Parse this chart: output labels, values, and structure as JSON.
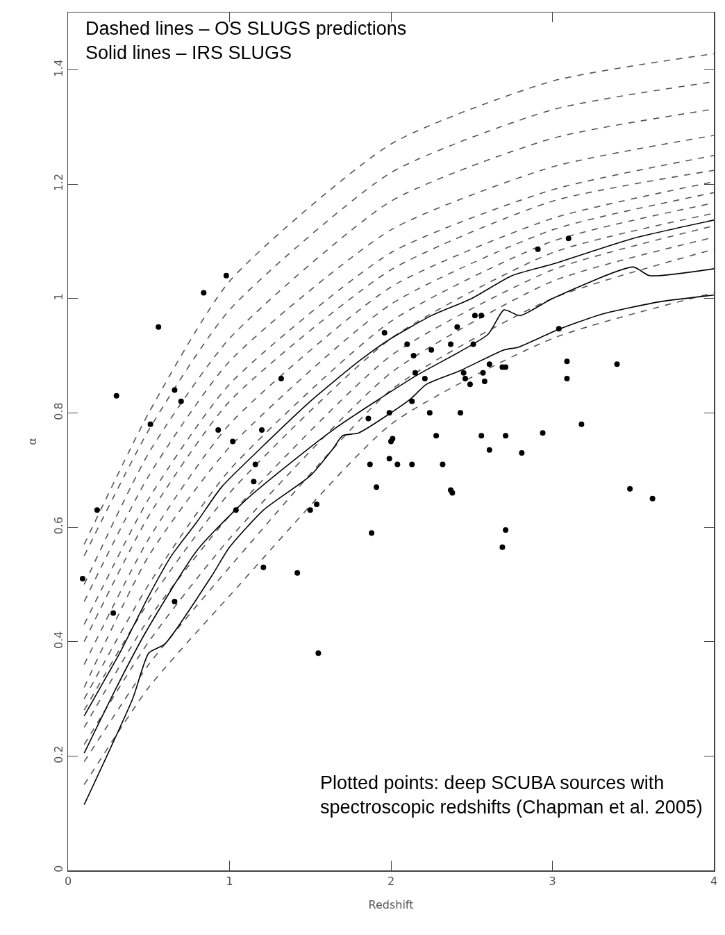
{
  "chart_data": {
    "type": "line",
    "xlabel": "Redshift",
    "ylabel": "α",
    "xlim": [
      0,
      4
    ],
    "ylim": [
      0,
      1.5
    ],
    "xticks": [
      0,
      1,
      2,
      3,
      4
    ],
    "yticks": [
      0,
      0.2,
      0.4,
      0.6,
      0.8,
      1,
      1.2,
      1.4
    ],
    "grid": false,
    "annotations": [
      "Dashed lines – OS SLUGS predictions\nSolid lines – IRS SLUGS",
      "Plotted points: deep SCUBA sources with\nspectroscopic redshifts (Chapman et al. 2005)"
    ],
    "series": [
      {
        "type": "line",
        "line_style": "dashed",
        "marker": "none",
        "color": "#555555",
        "x": [
          0.1,
          0.5,
          1,
          2,
          3,
          4
        ],
        "values": [
          0.57,
          0.8,
          1.03,
          1.27,
          1.38,
          1.428
        ]
      },
      {
        "type": "line",
        "line_style": "dashed",
        "marker": "none",
        "color": "#555555",
        "x": [
          0.1,
          0.5,
          1,
          2,
          3,
          4
        ],
        "values": [
          0.55,
          0.77,
          0.98,
          1.22,
          1.33,
          1.379
        ]
      },
      {
        "type": "line",
        "line_style": "dashed",
        "marker": "none",
        "color": "#555555",
        "x": [
          0.1,
          0.5,
          1,
          2,
          3,
          4
        ],
        "values": [
          0.5,
          0.73,
          0.93,
          1.17,
          1.28,
          1.331
        ]
      },
      {
        "type": "line",
        "line_style": "dashed",
        "marker": "none",
        "color": "#555555",
        "x": [
          0.1,
          0.5,
          1,
          2,
          3,
          4
        ],
        "values": [
          0.47,
          0.69,
          0.89,
          1.12,
          1.23,
          1.285
        ]
      },
      {
        "type": "line",
        "line_style": "dashed",
        "marker": "none",
        "color": "#555555",
        "x": [
          0.1,
          0.5,
          1,
          2,
          3,
          4
        ],
        "values": [
          0.43,
          0.65,
          0.85,
          1.08,
          1.19,
          1.25
        ]
      },
      {
        "type": "line",
        "line_style": "dashed",
        "marker": "none",
        "color": "#555555",
        "x": [
          0.1,
          0.5,
          1,
          2,
          3,
          4
        ],
        "values": [
          0.4,
          0.62,
          0.82,
          1.05,
          1.17,
          1.224
        ]
      },
      {
        "type": "line",
        "line_style": "dashed",
        "marker": "none",
        "color": "#555555",
        "x": [
          0.1,
          0.5,
          1,
          2,
          3,
          4
        ],
        "values": [
          0.36,
          0.58,
          0.78,
          1.02,
          1.14,
          1.204
        ]
      },
      {
        "type": "line",
        "line_style": "dashed",
        "marker": "none",
        "color": "#555555",
        "x": [
          0.1,
          0.5,
          1,
          2,
          3,
          4
        ],
        "values": [
          0.32,
          0.55,
          0.74,
          0.99,
          1.12,
          1.185
        ]
      },
      {
        "type": "line",
        "line_style": "dashed",
        "marker": "none",
        "color": "#555555",
        "x": [
          0.1,
          0.5,
          1,
          2,
          3,
          4
        ],
        "values": [
          0.3,
          0.5,
          0.7,
          0.96,
          1.1,
          1.167
        ]
      },
      {
        "type": "line",
        "line_style": "dashed",
        "marker": "none",
        "color": "#555555",
        "x": [
          0.1,
          0.5,
          1,
          2,
          3,
          4
        ],
        "values": [
          0.28,
          0.47,
          0.66,
          0.93,
          1.08,
          1.149
        ]
      },
      {
        "type": "line",
        "line_style": "dashed",
        "marker": "none",
        "color": "#555555",
        "x": [
          0.1,
          0.5,
          1,
          2,
          3,
          4
        ],
        "values": [
          0.25,
          0.44,
          0.62,
          0.9,
          1.05,
          1.127
        ]
      },
      {
        "type": "line",
        "line_style": "dashed",
        "marker": "none",
        "color": "#555555",
        "x": [
          0.1,
          0.5,
          1,
          2,
          3,
          4
        ],
        "values": [
          0.22,
          0.4,
          0.58,
          0.87,
          1.03,
          1.107
        ]
      },
      {
        "type": "line",
        "line_style": "dashed",
        "marker": "none",
        "color": "#555555",
        "x": [
          0.1,
          0.5,
          1,
          2,
          3,
          4
        ],
        "values": [
          0.19,
          0.36,
          0.53,
          0.84,
          1,
          1.086
        ]
      },
      {
        "type": "line",
        "line_style": "dashed",
        "marker": "none",
        "color": "#555555",
        "x": [
          0.1,
          0.5,
          1,
          2,
          3,
          4
        ],
        "values": [
          0.15,
          0.32,
          0.48,
          0.78,
          0.93,
          1.01
        ]
      },
      {
        "line_style": "solid",
        "marker": "none",
        "color": "#000000",
        "x": [
          0.1,
          0.2,
          0.32,
          0.5,
          0.64,
          0.8,
          0.95,
          1.2,
          1.5,
          1.8,
          2,
          2.25,
          2.5,
          2.75,
          3,
          3.5,
          4
        ],
        "values": [
          0.27,
          0.32,
          0.38,
          0.48,
          0.55,
          0.61,
          0.67,
          0.74,
          0.82,
          0.89,
          0.93,
          0.97,
          1,
          1.04,
          1.06,
          1.105,
          1.137
        ]
      },
      {
        "line_style": "solid",
        "marker": "none",
        "color": "#000000",
        "x": [
          0.1,
          0.3,
          0.48,
          0.8,
          1.11,
          1.64,
          2.15,
          2.6,
          2.7,
          2.8,
          3,
          3.5,
          3.6,
          4
        ],
        "values": [
          0.205,
          0.32,
          0.416,
          0.56,
          0.65,
          0.77,
          0.864,
          0.937,
          0.98,
          0.97,
          1,
          1.055,
          1.04,
          1.052
        ]
      },
      {
        "line_style": "solid",
        "marker": "none",
        "color": "#000000",
        "x": [
          0.1,
          0.4,
          0.5,
          0.6,
          0.89,
          1,
          1.21,
          1.5,
          1.64,
          1.7,
          1.8,
          2.12,
          2.22,
          2.43,
          2.7,
          2.79,
          3.03,
          3.31,
          3.66,
          4
        ],
        "values": [
          0.115,
          0.3,
          0.38,
          0.396,
          0.515,
          0.565,
          0.63,
          0.69,
          0.737,
          0.76,
          0.765,
          0.824,
          0.85,
          0.874,
          0.91,
          0.915,
          0.945,
          0.973,
          0.994,
          1.006
        ]
      },
      {
        "type": "scatter",
        "marker": "circle",
        "color": "#000000",
        "x": [
          0.09,
          0.18,
          0.3,
          0.28,
          0.51,
          0.56,
          0.66,
          0.66,
          0.7,
          0.84,
          0.98,
          0.93,
          1.02,
          1.04,
          1.15,
          1.16,
          1.2,
          1.21,
          1.32,
          1.42,
          1.5,
          1.54,
          1.55,
          1.86,
          1.87,
          1.88,
          1.91,
          1.96,
          1.99,
          1.99,
          2,
          2.01,
          2.04,
          2.1,
          2.13,
          2.13,
          2.14,
          2.15,
          2.21,
          2.24,
          2.25,
          2.28,
          2.32,
          2.37,
          2.37,
          2.38,
          2.41,
          2.43,
          2.45,
          2.46,
          2.49,
          2.51,
          2.52,
          2.56,
          2.56,
          2.57,
          2.58,
          2.61,
          2.61,
          2.69,
          2.71,
          2.69,
          2.71,
          2.71,
          2.81,
          2.91,
          2.94,
          3.04,
          3.09,
          3.1,
          3.09,
          3.18,
          3.4,
          3.48,
          3.62
        ],
        "values": [
          0.51,
          0.63,
          0.83,
          0.45,
          0.78,
          0.95,
          0.84,
          0.47,
          0.82,
          1.01,
          1.04,
          0.77,
          0.75,
          0.63,
          0.68,
          0.71,
          0.77,
          0.53,
          0.86,
          0.52,
          0.63,
          0.64,
          0.38,
          0.79,
          0.71,
          0.59,
          0.67,
          0.94,
          0.8,
          0.72,
          0.75,
          0.755,
          0.71,
          0.92,
          0.82,
          0.71,
          0.9,
          0.87,
          0.86,
          0.8,
          0.91,
          0.76,
          0.71,
          0.92,
          0.665,
          0.66,
          0.95,
          0.8,
          0.87,
          0.86,
          0.85,
          0.92,
          0.97,
          0.97,
          0.76,
          0.87,
          0.855,
          0.735,
          0.885,
          0.88,
          0.88,
          0.565,
          0.595,
          0.76,
          0.73,
          1.086,
          0.765,
          0.947,
          0.89,
          1.105,
          0.86,
          0.78,
          0.885,
          0.667,
          0.65
        ]
      }
    ]
  }
}
